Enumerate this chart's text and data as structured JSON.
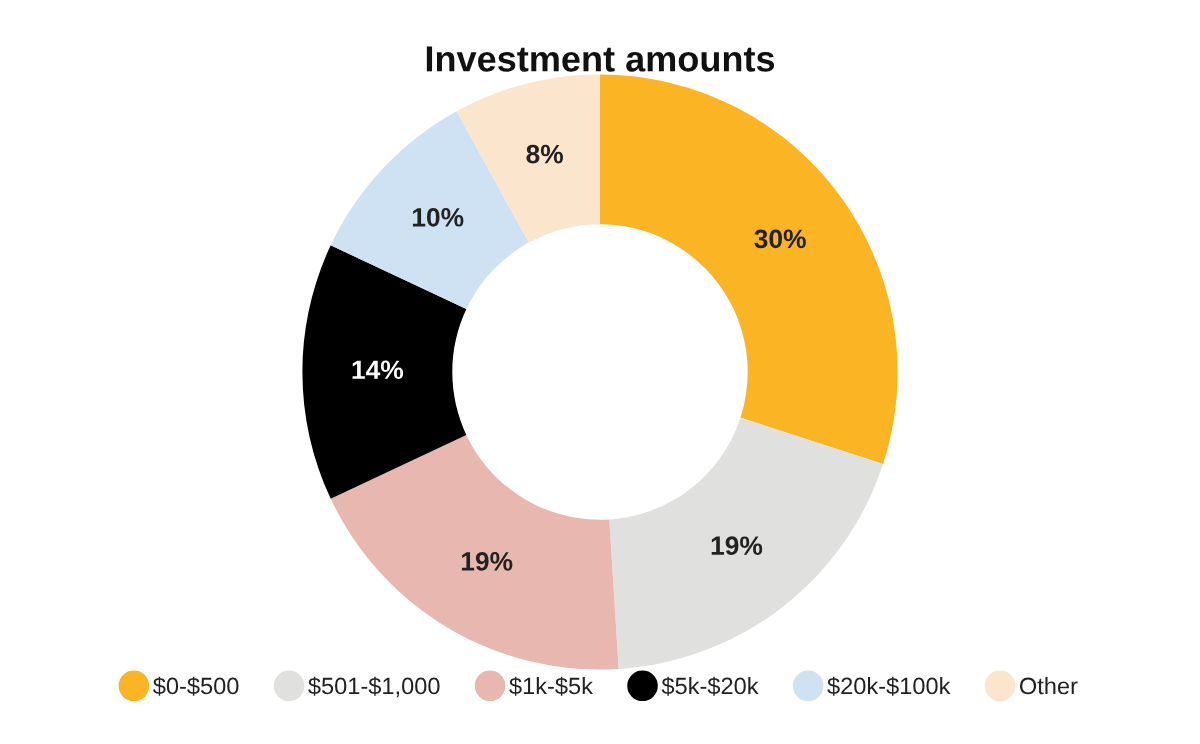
{
  "chart_data": {
    "type": "donut",
    "title": "Investment amounts",
    "categories": [
      "$0-$500",
      "$501-$1,000",
      "$1k-$5k",
      "$5k-$20k",
      "$20k-$100k",
      "Other"
    ],
    "values": [
      30,
      19,
      19,
      14,
      10,
      8
    ],
    "colors": [
      "#fbb424",
      "#e0e1df",
      "#e8b8b0",
      "#000000",
      "#cfe2f3",
      "#fce5cd"
    ],
    "value_labels": [
      "30%",
      "19%",
      "19%",
      "14%",
      "10%",
      "8%"
    ],
    "legend": "bottom"
  }
}
